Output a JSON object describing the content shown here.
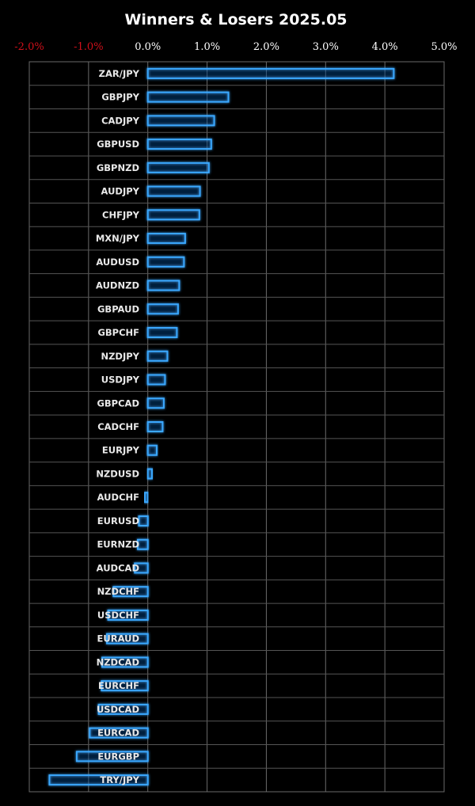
{
  "chart_data": {
    "type": "bar",
    "orientation": "horizontal",
    "title": "Winners & Losers 2025.05",
    "xlabel": "",
    "ylabel": "",
    "xlim": [
      -2.0,
      5.0
    ],
    "ticks": [
      {
        "value": -2.0,
        "label": "-2.0%"
      },
      {
        "value": -1.0,
        "label": "-1.0%"
      },
      {
        "value": 0.0,
        "label": "0.0%"
      },
      {
        "value": 1.0,
        "label": "1.0%"
      },
      {
        "value": 2.0,
        "label": "2.0%"
      },
      {
        "value": 3.0,
        "label": "3.0%"
      },
      {
        "value": 4.0,
        "label": "4.0%"
      },
      {
        "value": 5.0,
        "label": "5.0%"
      }
    ],
    "grid": true,
    "categories": [
      "ZAR/JPY",
      "GBPJPY",
      "CADJPY",
      "GBPUSD",
      "GBPNZD",
      "AUDJPY",
      "CHFJPY",
      "MXN/JPY",
      "AUDUSD",
      "AUDNZD",
      "GBPAUD",
      "GBPCHF",
      "NZDJPY",
      "USDJPY",
      "GBPCAD",
      "CADCHF",
      "EURJPY",
      "NZDUSD",
      "AUDCHF",
      "EURUSD",
      "EURNZD",
      "AUDCAD",
      "NZDCHF",
      "USDCHF",
      "EURAUD",
      "NZDCAD",
      "EURCHF",
      "USDCAD",
      "EURCAD",
      "EURGBP",
      "TRY/JPY"
    ],
    "values": [
      4.15,
      1.36,
      1.12,
      1.07,
      1.03,
      0.88,
      0.87,
      0.63,
      0.61,
      0.53,
      0.51,
      0.49,
      0.33,
      0.29,
      0.27,
      0.25,
      0.15,
      0.07,
      -0.05,
      -0.15,
      -0.17,
      -0.22,
      -0.58,
      -0.67,
      -0.69,
      -0.77,
      -0.78,
      -0.83,
      -0.98,
      -1.2,
      -1.66
    ],
    "colors": {
      "bar_stroke": "#3aa8ff",
      "bar_glow": "#1e6fd0",
      "negative_tick": "#d0101a",
      "positive_tick": "#ffffff",
      "grid": "#6a6a6a",
      "background": "#000000"
    }
  }
}
